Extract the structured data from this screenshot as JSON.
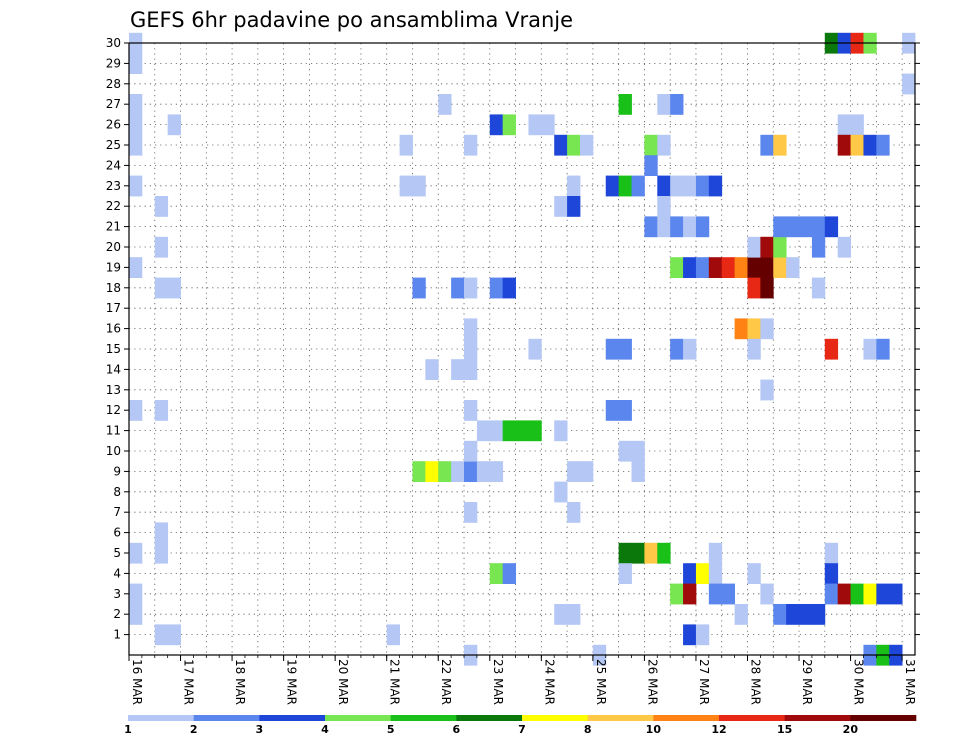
{
  "chart_data": {
    "type": "heatmap",
    "title": "GEFS 6hr padavine po ansamblima Vranje",
    "y_members": [
      1,
      2,
      3,
      4,
      5,
      6,
      7,
      8,
      9,
      10,
      11,
      12,
      13,
      14,
      15,
      16,
      17,
      18,
      19,
      20,
      21,
      22,
      23,
      24,
      25,
      26,
      27,
      28,
      29,
      30
    ],
    "y_range": [
      0,
      30
    ],
    "x_range_days": [
      16,
      31.25
    ],
    "x_ticks": [
      {
        "day": 16,
        "label": "16 MAR"
      },
      {
        "day": 17,
        "label": "17 MAR"
      },
      {
        "day": 18,
        "label": "18 MAR"
      },
      {
        "day": 19,
        "label": "19 MAR"
      },
      {
        "day": 20,
        "label": "20 MAR"
      },
      {
        "day": 21,
        "label": "21 MAR"
      },
      {
        "day": 22,
        "label": "22 MAR"
      },
      {
        "day": 23,
        "label": "23 MAR"
      },
      {
        "day": 24,
        "label": "24 MAR"
      },
      {
        "day": 25,
        "label": "25 MAR"
      },
      {
        "day": 26,
        "label": "26 MAR"
      },
      {
        "day": 27,
        "label": "27 MAR"
      },
      {
        "day": 28,
        "label": "28 MAR"
      },
      {
        "day": 29,
        "label": "29 MAR"
      },
      {
        "day": 30,
        "label": "30 MAR"
      },
      {
        "day": 31,
        "label": "31 MAR"
      }
    ],
    "grid": "dotted",
    "levels": [
      "1",
      "2",
      "3",
      "4",
      "5",
      "6",
      "7",
      "8",
      "10",
      "12",
      "15",
      "20"
    ],
    "level_colors": [
      "#b4c7f5",
      "#5a86ee",
      "#1e46d8",
      "#78e650",
      "#18c018",
      "#0a780a",
      "#ffff00",
      "#ffc846",
      "#ff8214",
      "#e62814",
      "#a00a0a",
      "#640000"
    ],
    "cells": [
      [
        30,
        16.0,
        0
      ],
      [
        29,
        16.0,
        0
      ],
      [
        27,
        16.0,
        0
      ],
      [
        26,
        16.0,
        0
      ],
      [
        25,
        16.0,
        0
      ],
      [
        23,
        16.0,
        0
      ],
      [
        19,
        16.0,
        0
      ],
      [
        12,
        16.0,
        0
      ],
      [
        5,
        16.0,
        0
      ],
      [
        3,
        16.0,
        0
      ],
      [
        2,
        16.0,
        0
      ],
      [
        26,
        16.75,
        0
      ],
      [
        22,
        16.5,
        0
      ],
      [
        20,
        16.5,
        0
      ],
      [
        18,
        16.5,
        0
      ],
      [
        18,
        16.75,
        0
      ],
      [
        12,
        16.5,
        0
      ],
      [
        6,
        16.5,
        0
      ],
      [
        5,
        16.5,
        0
      ],
      [
        1,
        16.5,
        0
      ],
      [
        1,
        16.75,
        0
      ],
      [
        1,
        21.0,
        0
      ],
      [
        25,
        21.25,
        0
      ],
      [
        23,
        21.25,
        0
      ],
      [
        23,
        21.5,
        0
      ],
      [
        18,
        21.5,
        1
      ],
      [
        14,
        21.75,
        0
      ],
      [
        27,
        22.0,
        0
      ],
      [
        9,
        21.5,
        3
      ],
      [
        9,
        21.75,
        6
      ],
      [
        9,
        22.0,
        3
      ],
      [
        9,
        22.25,
        0
      ],
      [
        9,
        22.5,
        1
      ],
      [
        9,
        22.75,
        0
      ],
      [
        9,
        23.0,
        0
      ],
      [
        18,
        22.25,
        1
      ],
      [
        18,
        22.5,
        0
      ],
      [
        14,
        22.25,
        0
      ],
      [
        14,
        22.5,
        0
      ],
      [
        15,
        22.5,
        0
      ],
      [
        16,
        22.5,
        0
      ],
      [
        12,
        22.5,
        0
      ],
      [
        10,
        22.5,
        0
      ],
      [
        7,
        22.5,
        0
      ],
      [
        25,
        22.5,
        0
      ],
      [
        0,
        22.5,
        0
      ],
      [
        26,
        23.0,
        2
      ],
      [
        26,
        23.25,
        3
      ],
      [
        18,
        23.0,
        1
      ],
      [
        18,
        23.25,
        2
      ],
      [
        11,
        22.75,
        0
      ],
      [
        11,
        23.0,
        0
      ],
      [
        11,
        23.25,
        4
      ],
      [
        11,
        23.5,
        4
      ],
      [
        11,
        23.75,
        4
      ],
      [
        4,
        23.0,
        3
      ],
      [
        4,
        23.25,
        1
      ],
      [
        26,
        23.75,
        0
      ],
      [
        26,
        24.0,
        0
      ],
      [
        15,
        23.75,
        0
      ],
      [
        11,
        24.25,
        0
      ],
      [
        8,
        24.25,
        0
      ],
      [
        2,
        24.25,
        0
      ],
      [
        2,
        24.5,
        0
      ],
      [
        25,
        24.25,
        2
      ],
      [
        25,
        24.5,
        3
      ],
      [
        25,
        24.75,
        0
      ],
      [
        23,
        24.5,
        0
      ],
      [
        22,
        24.25,
        0
      ],
      [
        22,
        24.5,
        2
      ],
      [
        9,
        24.5,
        0
      ],
      [
        9,
        24.75,
        0
      ],
      [
        7,
        24.5,
        0
      ],
      [
        0,
        25.0,
        0
      ],
      [
        27,
        25.5,
        4
      ],
      [
        23,
        25.25,
        2
      ],
      [
        23,
        25.5,
        4
      ],
      [
        23,
        25.75,
        1
      ],
      [
        15,
        25.25,
        1
      ],
      [
        15,
        25.5,
        1
      ],
      [
        12,
        25.25,
        1
      ],
      [
        12,
        25.5,
        1
      ],
      [
        10,
        25.5,
        0
      ],
      [
        10,
        25.75,
        0
      ],
      [
        9,
        25.75,
        0
      ],
      [
        5,
        25.5,
        5
      ],
      [
        5,
        25.75,
        5
      ],
      [
        5,
        26.0,
        7
      ],
      [
        5,
        26.25,
        4
      ],
      [
        4,
        25.5,
        0
      ],
      [
        25,
        26.0,
        3
      ],
      [
        25,
        26.25,
        0
      ],
      [
        24,
        26.0,
        1
      ],
      [
        23,
        26.25,
        2
      ],
      [
        22,
        26.25,
        0
      ],
      [
        21,
        26.0,
        1
      ],
      [
        21,
        26.25,
        0
      ],
      [
        21,
        26.5,
        1
      ],
      [
        21,
        26.75,
        0
      ],
      [
        21,
        27.0,
        1
      ],
      [
        27,
        26.25,
        0
      ],
      [
        27,
        26.5,
        1
      ],
      [
        23,
        26.5,
        0
      ],
      [
        23,
        26.75,
        0
      ],
      [
        23,
        27.0,
        1
      ],
      [
        23,
        27.25,
        2
      ],
      [
        19,
        26.5,
        3
      ],
      [
        19,
        26.75,
        2
      ],
      [
        19,
        27.0,
        1
      ],
      [
        19,
        27.25,
        10
      ],
      [
        19,
        27.5,
        9
      ],
      [
        19,
        27.75,
        8
      ],
      [
        19,
        28.0,
        11
      ],
      [
        19,
        28.25,
        11
      ],
      [
        19,
        28.5,
        7
      ],
      [
        19,
        28.75,
        0
      ],
      [
        15,
        26.5,
        1
      ],
      [
        15,
        26.75,
        0
      ],
      [
        4,
        26.75,
        2
      ],
      [
        4,
        27.0,
        6
      ],
      [
        4,
        27.25,
        0
      ],
      [
        3,
        26.5,
        3
      ],
      [
        3,
        26.75,
        10
      ],
      [
        3,
        27.25,
        1
      ],
      [
        3,
        27.5,
        1
      ],
      [
        2,
        27.75,
        0
      ],
      [
        1,
        26.75,
        2
      ],
      [
        1,
        27.0,
        0
      ],
      [
        5,
        27.25,
        0
      ],
      [
        20,
        28.0,
        0
      ],
      [
        20,
        28.25,
        10
      ],
      [
        20,
        28.5,
        3
      ],
      [
        18,
        28.0,
        9
      ],
      [
        18,
        28.25,
        11
      ],
      [
        16,
        27.75,
        8
      ],
      [
        16,
        28.0,
        7
      ],
      [
        16,
        28.25,
        0
      ],
      [
        15,
        28.0,
        0
      ],
      [
        13,
        28.25,
        0
      ],
      [
        4,
        28.0,
        0
      ],
      [
        3,
        28.25,
        0
      ],
      [
        25,
        28.25,
        1
      ],
      [
        25,
        28.5,
        7
      ],
      [
        21,
        28.5,
        1
      ],
      [
        21,
        28.75,
        1
      ],
      [
        21,
        29.0,
        1
      ],
      [
        21,
        29.25,
        1
      ],
      [
        21,
        29.5,
        2
      ],
      [
        20,
        29.25,
        1
      ],
      [
        20,
        29.75,
        0
      ],
      [
        18,
        29.25,
        0
      ],
      [
        2,
        28.5,
        1
      ],
      [
        2,
        28.75,
        2
      ],
      [
        2,
        29.0,
        2
      ],
      [
        2,
        29.25,
        2
      ],
      [
        5,
        29.5,
        0
      ],
      [
        4,
        29.5,
        2
      ],
      [
        3,
        29.5,
        1
      ],
      [
        3,
        29.75,
        10
      ],
      [
        15,
        29.5,
        9
      ],
      [
        26,
        29.75,
        0
      ],
      [
        26,
        30.0,
        0
      ],
      [
        25,
        29.75,
        10
      ],
      [
        25,
        30.0,
        7
      ],
      [
        25,
        30.25,
        2
      ],
      [
        25,
        30.5,
        1
      ],
      [
        30,
        29.5,
        5
      ],
      [
        30,
        29.75,
        2
      ],
      [
        30,
        30.0,
        9
      ],
      [
        30,
        30.25,
        3
      ],
      [
        30,
        31.0,
        0
      ],
      [
        28,
        31.0,
        0
      ],
      [
        15,
        30.25,
        0
      ],
      [
        15,
        30.5,
        1
      ],
      [
        3,
        30.0,
        4
      ],
      [
        3,
        30.25,
        6
      ],
      [
        3,
        30.5,
        2
      ],
      [
        3,
        30.75,
        2
      ],
      [
        0,
        30.25,
        1
      ],
      [
        0,
        30.5,
        4
      ],
      [
        0,
        30.75,
        2
      ]
    ]
  }
}
